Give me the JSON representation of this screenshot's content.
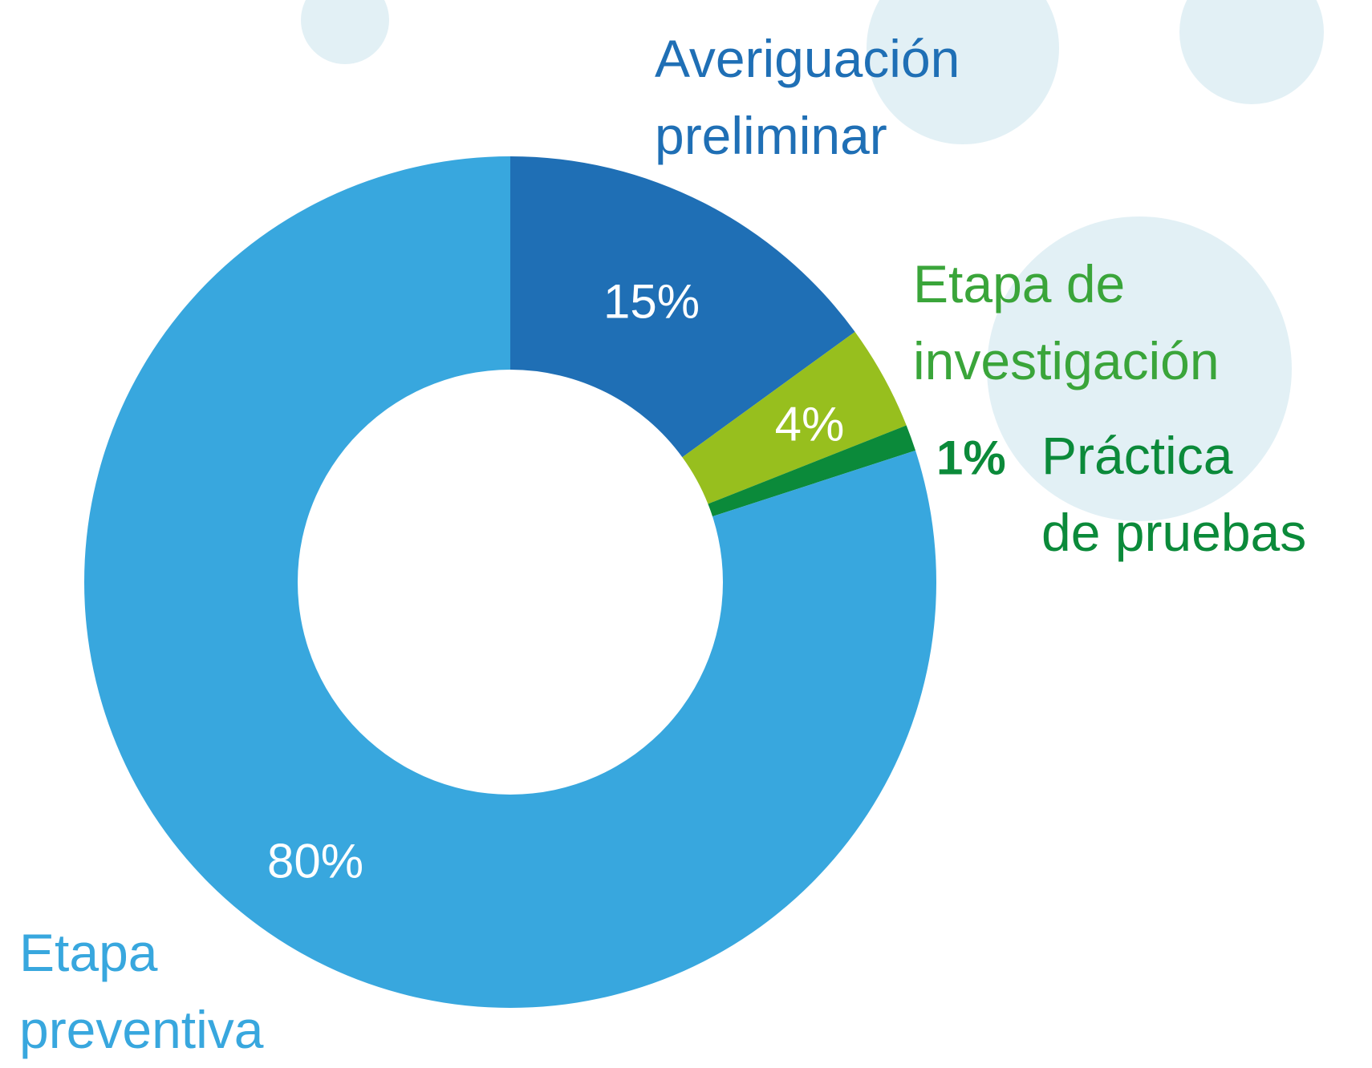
{
  "chart_data": {
    "type": "donut",
    "categories": [
      "Averiguación\npreliminar",
      "Etapa de\ninvestigación",
      "Práctica\nde pruebas",
      "Etapa\npreventiva"
    ],
    "values": [
      15,
      4,
      1,
      80
    ],
    "value_labels": [
      "15%",
      "4%",
      "1%",
      "80%"
    ],
    "colors": [
      "#1f6fb5",
      "#97bf1e",
      "#0b8a3a",
      "#38a7de"
    ],
    "label_colors": [
      "#1f6fb5",
      "#3aa53a",
      "#0b8a3a",
      "#38a7de"
    ]
  }
}
